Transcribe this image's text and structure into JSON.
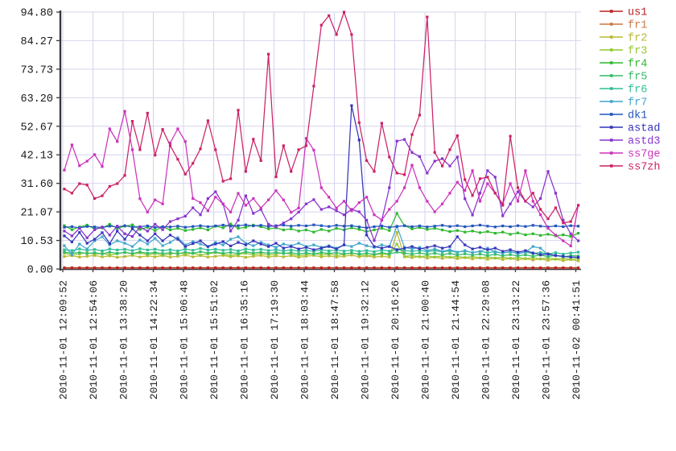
{
  "chart_data": {
    "type": "line",
    "title": "",
    "grid": true,
    "points_per_series": 69,
    "colors": {
      "background": "#ffffff",
      "grid": "#d4d4ee",
      "axis": "#3a3a3a",
      "tick_text": "#1a1a1a"
    },
    "y_axis": {
      "min": 0,
      "max": 94.8,
      "tick_labels": [
        "0.00",
        "10.53",
        "21.07",
        "31.60",
        "42.13",
        "52.67",
        "63.20",
        "73.73",
        "84.27",
        "94.80"
      ],
      "tick_values": [
        0,
        10.53,
        21.07,
        31.6,
        42.13,
        52.67,
        63.2,
        73.73,
        84.27,
        94.8
      ]
    },
    "x_axis": {
      "tick_labels": [
        "2010-11-01 12:09:52",
        "2010-11-01 12:54:06",
        "2010-11-01 13:38:20",
        "2010-11-01 14:22:34",
        "2010-11-01 15:06:48",
        "2010-11-01 15:51:02",
        "2010-11-01 16:35:16",
        "2010-11-01 17:19:30",
        "2010-11-01 18:03:44",
        "2010-11-01 18:47:58",
        "2010-11-01 19:32:12",
        "2010-11-01 20:16:26",
        "2010-11-01 21:00:40",
        "2010-11-01 21:44:54",
        "2010-11-01 22:29:08",
        "2010-11-01 23:13:22",
        "2010-11-01 23:57:36",
        "2010-11-02 00:41:51"
      ]
    },
    "legend": {
      "position": "right-top"
    },
    "series": [
      {
        "name": "us1",
        "color": "#bb2222",
        "z": 1,
        "constant": 0.35
      },
      {
        "name": "fr1",
        "color": "#cc7744",
        "z": 0,
        "constant": 0.5
      },
      {
        "name": "fr2",
        "color": "#b8b832",
        "z": 2,
        "values": [
          4.6,
          4.9,
          4.4,
          4.7,
          5,
          4.5,
          4.8,
          4.3,
          4.6,
          5,
          4.4,
          4.8,
          4.5,
          4.9,
          4.4,
          4.7,
          5.1,
          4.5,
          4.9,
          4.4,
          4.7,
          5,
          4.5,
          4.8,
          4.3,
          4.7,
          5,
          4.4,
          4.8,
          4.5,
          4.9,
          4.3,
          4.7,
          5,
          4.5,
          4.8,
          4.4,
          4.7,
          5.1,
          4.5,
          4.8,
          4.4,
          4.7,
          4.4,
          13.5,
          4.5,
          4.2,
          4.6,
          4,
          4.4,
          3.9,
          4.3,
          3.8,
          4.2,
          3.7,
          4.1,
          3.6,
          4,
          3.5,
          3.9,
          3.4,
          3.8,
          3.3,
          3.7,
          3.2,
          3.6,
          3.1,
          3.5,
          3
        ]
      },
      {
        "name": "fr3",
        "color": "#94c832",
        "z": 3,
        "values": [
          5.8,
          5.2,
          5.6,
          6,
          5.4,
          5.8,
          5.2,
          5.6,
          6.2,
          5.5,
          5.9,
          5.3,
          5.7,
          5.1,
          5.5,
          6,
          5.4,
          5.8,
          5.2,
          5.6,
          6.1,
          5.5,
          5,
          5.4,
          5.8,
          5.3,
          5.7,
          5.1,
          5.5,
          6,
          5.4,
          4.9,
          5.3,
          5.7,
          5.2,
          5.6,
          5,
          5.4,
          5.9,
          5.3,
          4.8,
          5.2,
          5.6,
          5.1,
          9.2,
          4.6,
          5,
          4.5,
          4.9,
          4.4,
          4.8,
          4.3,
          4.7,
          4.2,
          4.6,
          4.1,
          4.5,
          4,
          4.4,
          3.9,
          4.3,
          3.8,
          4.2,
          3.7,
          4.1,
          3.6,
          4,
          3.5,
          3.9
        ]
      },
      {
        "name": "fr4",
        "color": "#2eb82e",
        "z": 7,
        "values": [
          16,
          14.5,
          15.5,
          16.2,
          14.8,
          15.2,
          16.5,
          15,
          15.8,
          16.3,
          14.6,
          15.4,
          14.2,
          15.6,
          14.4,
          15,
          14.2,
          14.6,
          15.2,
          14.4,
          15.8,
          15.2,
          16.6,
          15,
          15.4,
          16.2,
          15.6,
          14.8,
          15.2,
          14.4,
          14.8,
          14,
          14.4,
          13.6,
          14.6,
          14,
          15,
          14.4,
          15.2,
          14.6,
          13.8,
          14.4,
          15,
          14.2,
          20.5,
          16,
          14.8,
          15.3,
          14.6,
          15,
          14.4,
          13.8,
          14.2,
          13.6,
          14,
          13.4,
          13.8,
          13.2,
          13.6,
          12.8,
          13.3,
          12.6,
          13,
          12.4,
          12.8,
          12.2,
          12.6,
          12,
          13.2
        ]
      },
      {
        "name": "fr5",
        "color": "#33bb66",
        "z": 4,
        "values": [
          6.2,
          5.8,
          6.1,
          5.7,
          6,
          5.6,
          6.2,
          5.8,
          6.1,
          5.7,
          6.3,
          5.8,
          6.1,
          5.7,
          6,
          5.6,
          6.2,
          5.8,
          6.4,
          5.9,
          6.2,
          5.8,
          6.1,
          5.7,
          6.3,
          5.9,
          6.2,
          5.8,
          6.1,
          5.7,
          6,
          5.6,
          5.9,
          5.5,
          6.1,
          5.7,
          6,
          5.6,
          5.9,
          5.5,
          5.8,
          5.4,
          6,
          5.6,
          6.2,
          5.8,
          5.5,
          5.9,
          5.4,
          5.8,
          5.3,
          5.7,
          5.2,
          5.6,
          5.1,
          5.5,
          5,
          5.4,
          4.9,
          5.3,
          4.8,
          5.2,
          4.7,
          5.1,
          4.6,
          5,
          4.5,
          4.9,
          4.8
        ]
      },
      {
        "name": "fr6",
        "color": "#30bd96",
        "z": 5,
        "values": [
          7.1,
          6.8,
          7.4,
          6.9,
          7.2,
          6.7,
          7.4,
          7,
          7.3,
          6.8,
          7.5,
          7,
          7.3,
          6.8,
          7.1,
          6.7,
          7.3,
          6.9,
          7.6,
          7,
          7.3,
          6.9,
          7.2,
          6.7,
          7.4,
          7,
          7.3,
          6.8,
          7.1,
          6.7,
          7,
          6.6,
          6.9,
          6.5,
          7.1,
          6.7,
          7,
          6.6,
          6.9,
          6.5,
          6.8,
          6.4,
          7,
          6.6,
          7.2,
          6.8,
          6.5,
          6.9,
          6.4,
          6.8,
          6.3,
          6.7,
          6.2,
          6.6,
          6.1,
          6.5,
          6,
          6.4,
          5.9,
          6.3,
          5.8,
          6.2,
          5.7,
          6.1,
          5.6,
          6,
          5.5,
          5.9,
          6.2
        ]
      },
      {
        "name": "fr7",
        "color": "#44a6cc",
        "z": 6,
        "values": [
          8.6,
          5.3,
          9.2,
          7.4,
          10.4,
          11.9,
          8.9,
          10.4,
          9.5,
          8.3,
          10.7,
          9.2,
          11.3,
          8.6,
          9.8,
          11.6,
          8.9,
          10.1,
          9.2,
          8.3,
          9.8,
          8.9,
          11,
          11.9,
          9.5,
          8.6,
          9.8,
          8.9,
          8,
          9.2,
          8.6,
          9.5,
          8.3,
          8.9,
          8,
          8.6,
          7.7,
          8.9,
          8.3,
          9.5,
          8.6,
          8,
          8.9,
          8.3,
          15.8,
          8,
          7.4,
          8,
          6.8,
          7.4,
          6.5,
          7.1,
          6.2,
          6.8,
          6,
          6.5,
          7.7,
          6.2,
          5.9,
          6.5,
          5.6,
          6.2,
          8.3,
          7.7,
          5.3,
          5,
          4.7,
          4.4,
          4.2
        ]
      },
      {
        "name": "dk1",
        "color": "#2255bb",
        "z": 8,
        "values": [
          15.4,
          15.6,
          15.2,
          15.7,
          15.5,
          15.3,
          15.8,
          15.5,
          16,
          15.4,
          15.6,
          15.9,
          15.3,
          15.6,
          15.5,
          15.8,
          15.4,
          15.7,
          16,
          15.6,
          15.9,
          16.2,
          15.8,
          16,
          16.3,
          15.9,
          16.1,
          15.7,
          16,
          16.2,
          15.8,
          16.1,
          15.9,
          16.3,
          16,
          15.7,
          16.1,
          15.8,
          16,
          15.5,
          15.2,
          15.6,
          15.9,
          15.4,
          15.7,
          16,
          15.6,
          15.9,
          15.5,
          15.8,
          16.1,
          15.7,
          16,
          15.6,
          15.9,
          16.2,
          15.8,
          15.5,
          15.9,
          15.6,
          16,
          15.7,
          16.1,
          15.8,
          15.5,
          15.9,
          15.6,
          16,
          15.8
        ]
      },
      {
        "name": "astad",
        "color": "#3535bb",
        "z": 9,
        "values": [
          12.2,
          10,
          13.5,
          9.5,
          11,
          13.4,
          9.4,
          14,
          11,
          14.8,
          12.5,
          10.4,
          13,
          10.4,
          12.5,
          11,
          8.3,
          9.4,
          10.4,
          8.3,
          9.2,
          10.1,
          8.5,
          9.8,
          8.9,
          10.4,
          9.2,
          8.3,
          9.5,
          7.7,
          8.3,
          7.4,
          8,
          7.1,
          7.7,
          8.3,
          7.4,
          8.9,
          60.3,
          47.6,
          12.5,
          8.3,
          7.7,
          8.3,
          7.1,
          7.7,
          8.3,
          7.4,
          8,
          8.6,
          7.7,
          8.3,
          11.9,
          8.9,
          7.4,
          8,
          7.1,
          7.7,
          6.5,
          7.1,
          6.2,
          6.8,
          5.9,
          5.3,
          5.6,
          5,
          4.7,
          4.4,
          4.3
        ]
      },
      {
        "name": "astd3",
        "color": "#8833cc",
        "z": 10,
        "values": [
          14,
          12.2,
          15,
          11.5,
          14.5,
          15.5,
          12.5,
          15.8,
          13,
          12,
          15.5,
          14,
          16.5,
          14.5,
          17.5,
          18.5,
          19.5,
          22.6,
          20,
          26,
          28.5,
          24,
          14,
          18,
          27,
          20.5,
          22,
          16.5,
          15.5,
          17,
          18.5,
          21,
          24,
          25.6,
          22,
          22.9,
          21.5,
          20,
          22,
          21.1,
          18,
          10.5,
          18,
          30,
          47.2,
          47.8,
          43,
          41.5,
          35.4,
          39.8,
          40.7,
          38,
          41.3,
          25.9,
          19.9,
          28,
          36.3,
          33.9,
          19.6,
          24,
          28.5,
          25,
          22.9,
          26,
          36,
          28,
          18,
          13,
          10.4
        ]
      },
      {
        "name": "ss7ge",
        "color": "#cc33bb",
        "z": 11,
        "values": [
          36.5,
          45.8,
          38.1,
          39.8,
          42.2,
          37.8,
          51.7,
          47,
          58.2,
          44,
          25.9,
          21,
          25.5,
          24,
          46.5,
          51.7,
          47,
          26,
          24.5,
          21.5,
          26.5,
          24,
          21,
          27.9,
          23.5,
          26,
          22.5,
          25.5,
          28.9,
          25.5,
          20.9,
          22.5,
          48.2,
          43.9,
          30,
          26.5,
          22.5,
          25,
          21.5,
          24.5,
          26.5,
          20,
          18.1,
          22,
          25,
          30,
          38.3,
          30,
          25,
          21.1,
          24,
          28,
          32,
          29,
          36.3,
          25,
          31.5,
          28,
          24,
          31.5,
          25,
          36.3,
          25,
          20,
          15,
          12.5,
          10.4,
          8.5,
          23.5
        ]
      },
      {
        "name": "ss7zh",
        "color": "#cc2266",
        "z": 12,
        "values": [
          29.5,
          28,
          31.5,
          31,
          26,
          27,
          30.5,
          31.5,
          34.5,
          54.5,
          44,
          57.5,
          42,
          51.5,
          45.5,
          40.5,
          35,
          39,
          44.3,
          54.7,
          44,
          32.4,
          33.3,
          58.6,
          36,
          47.9,
          40,
          79.3,
          34,
          45.5,
          36,
          44,
          45.5,
          67.5,
          90,
          93.5,
          86.5,
          94.8,
          86.5,
          54,
          40,
          36,
          53.8,
          41.3,
          35.4,
          34.8,
          49.6,
          56.8,
          93,
          43,
          38,
          44,
          49.2,
          33,
          27.1,
          33.3,
          33.9,
          28,
          23.5,
          49,
          30,
          25,
          28,
          22,
          18.5,
          22.6,
          17,
          17.5,
          23.5
        ]
      }
    ]
  }
}
